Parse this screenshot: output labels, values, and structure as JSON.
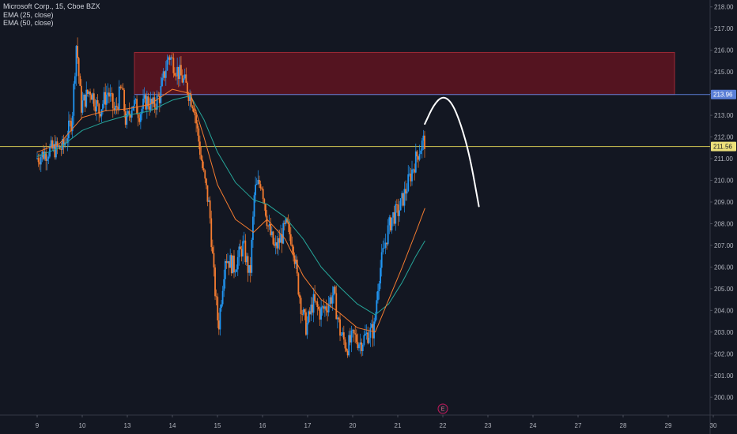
{
  "legend": {
    "symbol": "Microsoft Corp., 15, Cboe BZX",
    "ema1": "EMA (25, close)",
    "ema2": "EMA (50, close)"
  },
  "colors": {
    "background": "#131722",
    "up": "#2196f3",
    "down": "#f57c30",
    "ema_fast": "#f57c30",
    "ema_slow": "#26a69a",
    "zone_fill": "#5c1420",
    "zone_border": "#9c2a36",
    "support_line": "#5b7fd6",
    "current_price_line": "#d8cc55",
    "projection": "#ffffff",
    "event_marker": "#c2185b"
  },
  "chart_data": {
    "type": "candlestick",
    "title": "Microsoft Corp., 15, Cboe BZX",
    "x_ticks": [
      "9",
      "10",
      "13",
      "14",
      "15",
      "16",
      "17",
      "20",
      "21",
      "22",
      "23",
      "24",
      "27",
      "28",
      "29",
      "30"
    ],
    "y_ticks": [
      200,
      201,
      202,
      203,
      204,
      205,
      206,
      207,
      208,
      209,
      210,
      211,
      212,
      213,
      214,
      215,
      216,
      217,
      218
    ],
    "y_range": [
      199.9,
      218.1
    ],
    "price_labels": {
      "support": "213.96",
      "current": "211.56"
    },
    "supply_zone": {
      "top": 215.9,
      "bottom": 213.96,
      "start_day": "13",
      "end_day": "29"
    },
    "support_level": 213.96,
    "current_price": 211.56,
    "event_marker": {
      "label": "E",
      "day": "22"
    },
    "series_path": [
      [
        0,
        211.0
      ],
      [
        0.3,
        211.4
      ],
      [
        0.6,
        211.5
      ],
      [
        0.8,
        212.8
      ],
      [
        0.9,
        216.4
      ],
      [
        1.0,
        213.4
      ],
      [
        1.2,
        214.2
      ],
      [
        1.4,
        213.2
      ],
      [
        1.6,
        214.1
      ],
      [
        1.75,
        213.1
      ],
      [
        1.9,
        214.3
      ],
      [
        2.0,
        212.6
      ],
      [
        2.15,
        213.6
      ],
      [
        2.3,
        213.1
      ],
      [
        2.45,
        213.7
      ],
      [
        2.6,
        213.4
      ],
      [
        2.75,
        213.9
      ],
      [
        2.85,
        214.9
      ],
      [
        2.95,
        215.8
      ],
      [
        3.1,
        215.2
      ],
      [
        3.3,
        214.5
      ],
      [
        3.5,
        213.5
      ],
      [
        3.7,
        210.5
      ],
      [
        3.85,
        208.7
      ],
      [
        3.95,
        205.5
      ],
      [
        4.05,
        203.2
      ],
      [
        4.2,
        206.5
      ],
      [
        4.4,
        206.0
      ],
      [
        4.6,
        207.0
      ],
      [
        4.75,
        205.5
      ],
      [
        4.85,
        209.5
      ],
      [
        5.0,
        210.0
      ],
      [
        5.15,
        207.9
      ],
      [
        5.3,
        206.8
      ],
      [
        5.45,
        207.4
      ],
      [
        5.55,
        207.9
      ],
      [
        5.7,
        207.2
      ],
      [
        5.8,
        205.4
      ],
      [
        5.9,
        204.0
      ],
      [
        6.0,
        203.2
      ],
      [
        6.15,
        204.4
      ],
      [
        6.3,
        203.9
      ],
      [
        6.45,
        204.2
      ],
      [
        6.6,
        204.8
      ],
      [
        6.75,
        203.0
      ],
      [
        6.9,
        202.3
      ],
      [
        7.05,
        202.8
      ],
      [
        7.2,
        202.5
      ],
      [
        7.35,
        202.9
      ],
      [
        7.5,
        203.1
      ],
      [
        7.6,
        205.5
      ],
      [
        7.7,
        206.6
      ],
      [
        7.8,
        207.6
      ],
      [
        7.9,
        208.3
      ],
      [
        8.05,
        208.6
      ],
      [
        8.2,
        209.5
      ],
      [
        8.35,
        210.5
      ],
      [
        8.5,
        211.4
      ],
      [
        8.6,
        211.8
      ]
    ],
    "ema_fast_path": [
      [
        0,
        211.3
      ],
      [
        0.5,
        211.7
      ],
      [
        1.0,
        212.9
      ],
      [
        1.5,
        213.2
      ],
      [
        2.0,
        213.3
      ],
      [
        2.5,
        213.5
      ],
      [
        3.0,
        214.2
      ],
      [
        3.4,
        214.0
      ],
      [
        3.7,
        212.0
      ],
      [
        4.0,
        209.8
      ],
      [
        4.4,
        208.2
      ],
      [
        4.8,
        207.6
      ],
      [
        5.1,
        208.2
      ],
      [
        5.5,
        207.3
      ],
      [
        5.9,
        205.6
      ],
      [
        6.3,
        204.5
      ],
      [
        6.7,
        203.9
      ],
      [
        7.1,
        203.2
      ],
      [
        7.5,
        203.0
      ],
      [
        7.8,
        204.5
      ],
      [
        8.1,
        206.0
      ],
      [
        8.4,
        207.6
      ],
      [
        8.6,
        208.7
      ]
    ],
    "ema_slow_path": [
      [
        0,
        211.1
      ],
      [
        0.5,
        211.5
      ],
      [
        1.0,
        212.3
      ],
      [
        1.5,
        212.7
      ],
      [
        2.0,
        213.0
      ],
      [
        2.5,
        213.2
      ],
      [
        3.0,
        213.7
      ],
      [
        3.4,
        213.9
      ],
      [
        3.7,
        212.8
      ],
      [
        4.0,
        211.3
      ],
      [
        4.4,
        209.9
      ],
      [
        4.8,
        209.1
      ],
      [
        5.1,
        208.9
      ],
      [
        5.5,
        208.3
      ],
      [
        5.9,
        207.3
      ],
      [
        6.3,
        206.0
      ],
      [
        6.7,
        205.1
      ],
      [
        7.1,
        204.3
      ],
      [
        7.5,
        203.8
      ],
      [
        7.8,
        204.3
      ],
      [
        8.1,
        205.3
      ],
      [
        8.4,
        206.5
      ],
      [
        8.6,
        207.2
      ]
    ],
    "projection_path": [
      [
        8.6,
        212.6
      ],
      [
        8.8,
        213.5
      ],
      [
        9.0,
        213.9
      ],
      [
        9.2,
        213.6
      ],
      [
        9.4,
        212.6
      ],
      [
        9.6,
        211.1
      ],
      [
        9.8,
        208.8
      ]
    ]
  }
}
